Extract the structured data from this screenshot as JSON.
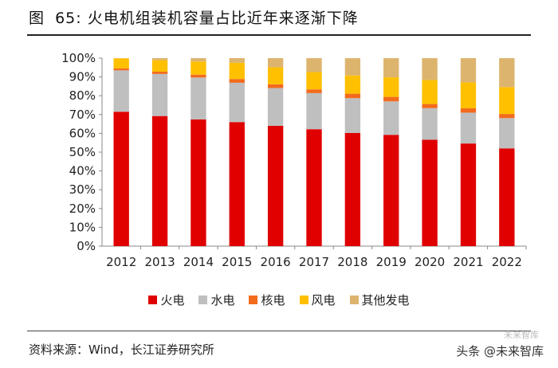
{
  "figure": {
    "label": "图",
    "number": "65:",
    "title_text": "火电机组装机容量占比近年来逐渐下降"
  },
  "source": "资料来源：Wind，长江证券研究所",
  "watermark": {
    "main": "头条 @未来智库",
    "faint": "未来智库"
  },
  "colors": {
    "thermal": "#E00000",
    "hydro": "#BFBFBF",
    "nuclear": "#F26B1D",
    "wind": "#FFC000",
    "other": "#DDB46E"
  },
  "chart_data": {
    "type": "bar",
    "stacked": true,
    "title": "火电机组装机容量占比近年来逐渐下降",
    "xlabel": "",
    "ylabel": "",
    "ylim": [
      0,
      100
    ],
    "yticks": [
      "0%",
      "10%",
      "20%",
      "30%",
      "40%",
      "50%",
      "60%",
      "70%",
      "80%",
      "90%",
      "100%"
    ],
    "categories": [
      "2012",
      "2013",
      "2014",
      "2015",
      "2016",
      "2017",
      "2018",
      "2019",
      "2020",
      "2021",
      "2022"
    ],
    "legend_position": "bottom",
    "series": [
      {
        "name": "火电",
        "key": "thermal",
        "values": [
          71.5,
          69.2,
          67.4,
          66.0,
          64.0,
          62.2,
          60.2,
          59.2,
          56.6,
          54.6,
          52.0
        ]
      },
      {
        "name": "水电",
        "key": "hydro",
        "values": [
          22.0,
          22.4,
          22.3,
          20.9,
          20.1,
          19.2,
          18.5,
          17.8,
          16.8,
          16.4,
          16.1
        ]
      },
      {
        "name": "核电",
        "key": "nuclear",
        "values": [
          1.1,
          1.2,
          1.5,
          2.0,
          2.0,
          2.0,
          2.4,
          2.4,
          2.2,
          2.3,
          2.2
        ]
      },
      {
        "name": "风电",
        "key": "wind",
        "values": [
          5.3,
          6.1,
          7.0,
          8.6,
          9.0,
          9.2,
          9.7,
          10.4,
          12.8,
          13.8,
          14.3
        ]
      },
      {
        "name": "其他发电",
        "key": "other",
        "values": [
          0.1,
          1.1,
          1.8,
          2.5,
          4.9,
          7.4,
          9.2,
          10.2,
          11.6,
          12.9,
          15.4
        ]
      }
    ]
  }
}
